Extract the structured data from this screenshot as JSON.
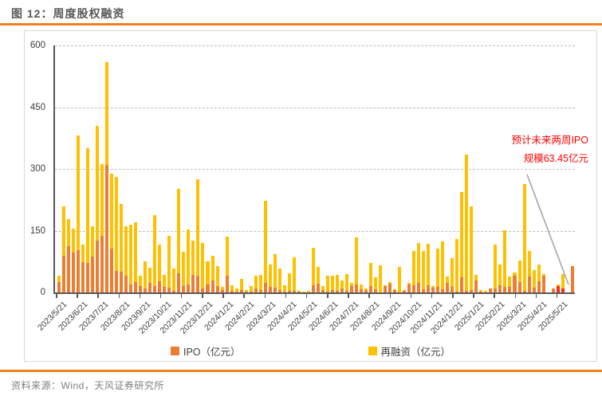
{
  "header": {
    "title": "图 12：周度股权融资"
  },
  "footer": {
    "source": "资料来源：Wind，天风证券研究所"
  },
  "colors": {
    "ipo": "#ED7D31",
    "refinance": "#FFC000",
    "forecast_red": "#FF2A12",
    "accent_rule": "#F0801E",
    "annotation_text": "#FF0000",
    "gridline": "#BFBFBF",
    "axis": "#595959",
    "connector": "#A6A6A6"
  },
  "chart_data": {
    "type": "bar",
    "stacked": true,
    "title": "周度股权融资",
    "legend": [
      "IPO（亿元）",
      "再融资（亿元）"
    ],
    "legend_position": "bottom",
    "grid": "dashed-horizontal",
    "ylim": [
      0,
      600
    ],
    "yticks": [
      0,
      150,
      300,
      450,
      600
    ],
    "x_tick_labels": [
      "2023/5/21",
      "2023/6/21",
      "2023/7/21",
      "2023/8/21",
      "2023/9/21",
      "2023/10/21",
      "2023/11/21",
      "2023/12/21",
      "2024/1/21",
      "2024/2/21",
      "2024/3/21",
      "2024/4/21",
      "2024/5/21",
      "2024/6/21",
      "2024/7/21",
      "2024/8/21",
      "2024/9/21",
      "2024/10/21",
      "2024/11/21",
      "2024/12/21",
      "2025/1/21",
      "2025/2/21",
      "2025/3/21",
      "2025/4/21",
      "2025/5/21"
    ],
    "series_note": "weeks = weekly stacked values [IPO, 再融资] in 亿元, 2023/5/21 → 2025/5/21",
    "weeks": [
      [
        25,
        15
      ],
      [
        90,
        120
      ],
      [
        113,
        65
      ],
      [
        97,
        58
      ],
      [
        102,
        280
      ],
      [
        73,
        43
      ],
      [
        71,
        280
      ],
      [
        87,
        74
      ],
      [
        125,
        280
      ],
      [
        137,
        175
      ],
      [
        310,
        250
      ],
      [
        106,
        182
      ],
      [
        52,
        228
      ],
      [
        50,
        165
      ],
      [
        40,
        120
      ],
      [
        20,
        145
      ],
      [
        25,
        145
      ],
      [
        15,
        25
      ],
      [
        10,
        65
      ],
      [
        23,
        37
      ],
      [
        15,
        173
      ],
      [
        28,
        88
      ],
      [
        13,
        29
      ],
      [
        11,
        127
      ],
      [
        3,
        56
      ],
      [
        46,
        205
      ],
      [
        16,
        82
      ],
      [
        19,
        134
      ],
      [
        42,
        84
      ],
      [
        41,
        233
      ],
      [
        10,
        110
      ],
      [
        19,
        56
      ],
      [
        30,
        60
      ],
      [
        16,
        48
      ],
      [
        6,
        7
      ],
      [
        41,
        94
      ],
      [
        4,
        13
      ],
      [
        2,
        8
      ],
      [
        6,
        26
      ],
      [
        2,
        3
      ],
      [
        1,
        14
      ],
      [
        10,
        30
      ],
      [
        5,
        38
      ],
      [
        23,
        199
      ],
      [
        13,
        55
      ],
      [
        12,
        81
      ],
      [
        5,
        53
      ],
      [
        2,
        15
      ],
      [
        4,
        42
      ],
      [
        3,
        82
      ],
      [
        1,
        2
      ],
      [
        0,
        1
      ],
      [
        0,
        3
      ],
      [
        17,
        92
      ],
      [
        21,
        41
      ],
      [
        6,
        10
      ],
      [
        1,
        39
      ],
      [
        6,
        34
      ],
      [
        4,
        38
      ],
      [
        10,
        19
      ],
      [
        3,
        41
      ],
      [
        16,
        8
      ],
      [
        19,
        114
      ],
      [
        8,
        11
      ],
      [
        5,
        5
      ],
      [
        16,
        56
      ],
      [
        8,
        29
      ],
      [
        0,
        66
      ],
      [
        15,
        2
      ],
      [
        21,
        5
      ],
      [
        5,
        3
      ],
      [
        0,
        62
      ],
      [
        4,
        2
      ],
      [
        19,
        4
      ],
      [
        17,
        84
      ],
      [
        23,
        97
      ],
      [
        8,
        92
      ],
      [
        17,
        101
      ],
      [
        11,
        5
      ],
      [
        14,
        92
      ],
      [
        8,
        116
      ],
      [
        23,
        16
      ],
      [
        14,
        70
      ],
      [
        2,
        127
      ],
      [
        37,
        206
      ],
      [
        3,
        332
      ],
      [
        5,
        205
      ],
      [
        30,
        12
      ],
      [
        2,
        3
      ],
      [
        0,
        3
      ],
      [
        10,
        0
      ],
      [
        10,
        106
      ],
      [
        17,
        51
      ],
      [
        14,
        137
      ],
      [
        13,
        26
      ],
      [
        40,
        8
      ],
      [
        26,
        51
      ],
      [
        3,
        261
      ],
      [
        39,
        62
      ],
      [
        12,
        42
      ],
      [
        27,
        41
      ],
      [
        40,
        4
      ],
      [
        0,
        0
      ],
      [
        9,
        0
      ],
      [
        16,
        4
      ],
      [
        9,
        35
      ]
    ],
    "red_ipo_indices": [
      104,
      105
    ],
    "forecast_bar": {
      "ipo": 63.45,
      "label": "未来两周IPO预计"
    },
    "annotation": {
      "line1": "预计未来两周IPO",
      "line2": "规模63.45亿元"
    }
  }
}
